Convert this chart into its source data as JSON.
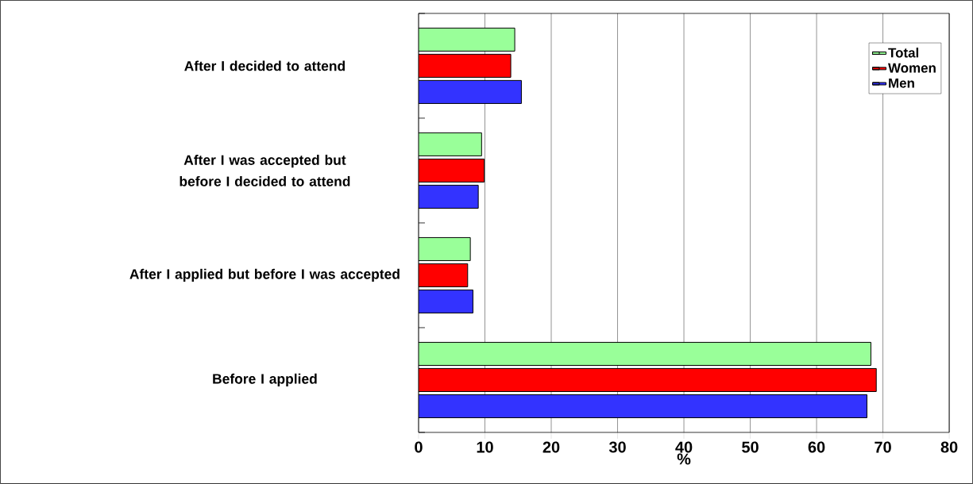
{
  "chart_data": {
    "type": "bar",
    "orientation": "horizontal",
    "xlabel": "%",
    "categories": [
      "After I decided to attend",
      "After I was accepted but before I decided to attend",
      "After I applied but before I was accepted",
      "Before I applied"
    ],
    "series": [
      {
        "name": "Total",
        "color": "#99ff99",
        "values": [
          14.5,
          9.5,
          7.8,
          68.2
        ]
      },
      {
        "name": "Women",
        "color": "#ff0000",
        "values": [
          13.9,
          9.9,
          7.4,
          69.0
        ]
      },
      {
        "name": "Men",
        "color": "#3333ff",
        "values": [
          15.5,
          9.0,
          8.2,
          67.6
        ]
      }
    ],
    "xlim": [
      0,
      80
    ],
    "xticks": [
      0,
      10,
      20,
      30,
      40,
      50,
      60,
      70,
      80
    ],
    "grid": "x",
    "legend": "top right"
  }
}
